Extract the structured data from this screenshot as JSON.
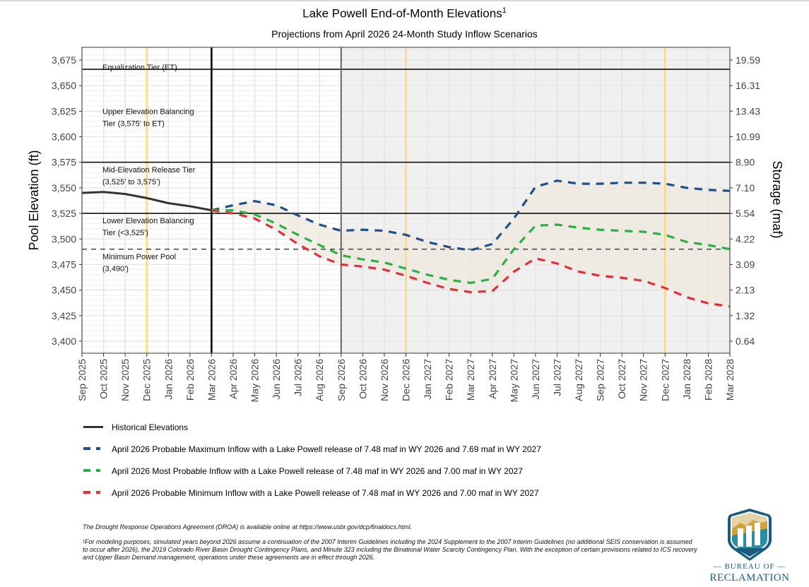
{
  "chart_data": {
    "type": "line",
    "title": "Lake Powell End-of-Month Elevations",
    "title_superscript": "1",
    "subtitle": "Projections from April 2026 24-Month Study Inflow Scenarios",
    "ylabel": "Pool Elevation (ft)",
    "ylabel_right": "Storage (maf)",
    "xlabel": "",
    "ylim": [
      3388,
      3688
    ],
    "grid": true,
    "legend_position": "bottom",
    "x": [
      "Sep 2025",
      "Oct 2025",
      "Nov 2025",
      "Dec 2025",
      "Jan 2026",
      "Feb 2026",
      "Mar 2026",
      "Apr 2026",
      "May 2026",
      "Jun 2026",
      "Jul 2026",
      "Aug 2026",
      "Sep 2026",
      "Oct 2026",
      "Nov 2026",
      "Dec 2026",
      "Jan 2027",
      "Feb 2027",
      "Mar 2027",
      "Apr 2027",
      "May 2027",
      "Jun 2027",
      "Jul 2027",
      "Aug 2027",
      "Sep 2027",
      "Oct 2027",
      "Nov 2027",
      "Dec 2027",
      "Jan 2028",
      "Feb 2028",
      "Mar 2028"
    ],
    "y_ticks": [
      "3,400",
      "3,425",
      "3,450",
      "3,475",
      "3,500",
      "3,525",
      "3,550",
      "3,575",
      "3,600",
      "3,625",
      "3,650",
      "3,675"
    ],
    "y_tick_values": [
      3400,
      3425,
      3450,
      3475,
      3500,
      3525,
      3550,
      3575,
      3600,
      3625,
      3650,
      3675
    ],
    "y_right_ticks": [
      "0.64",
      "1.32",
      "2.13",
      "3.09",
      "4.22",
      "5.54",
      "7.10",
      "8.90",
      "10.99",
      "13.43",
      "16.31",
      "19.59"
    ],
    "series": [
      {
        "name": "Historical Elevations",
        "color": "#333333",
        "style": "solid",
        "start_index": 0,
        "values": [
          3545,
          3546,
          3544,
          3540,
          3535,
          3532,
          3528
        ]
      },
      {
        "name": "April 2026 Probable Maximum Inflow with a Lake Powell release of 7.48 maf in WY 2026 and 7.69 maf in WY 2027",
        "color": "#1f4e8c",
        "style": "dashed",
        "start_index": 6,
        "values": [
          3528,
          3533,
          3537,
          3533,
          3523,
          3514,
          3508,
          3509,
          3508,
          3504,
          3497,
          3492,
          3489,
          3495,
          3520,
          3551,
          3557,
          3554,
          3554,
          3555,
          3555,
          3554,
          3550,
          3548,
          3547
        ]
      },
      {
        "name": "April 2026 Most Probable Inflow with a Lake Powell release of 7.48 maf in WY 2026 and 7.00 maf in WY 2027",
        "color": "#2ab043",
        "style": "dashed",
        "start_index": 6,
        "values": [
          3528,
          3528,
          3524,
          3515,
          3504,
          3494,
          3484,
          3480,
          3477,
          3471,
          3465,
          3460,
          3457,
          3461,
          3490,
          3513,
          3514,
          3511,
          3509,
          3508,
          3507,
          3504,
          3497,
          3494,
          3490
        ]
      },
      {
        "name": "April 2026 Probable Minimum Inflow with a Lake Powell release of 7.48 maf in WY 2026 and 7.00 maf in WY 2027",
        "color": "#e0303a",
        "style": "dashed",
        "start_index": 6,
        "values": [
          3528,
          3525,
          3520,
          3509,
          3495,
          3483,
          3475,
          3473,
          3470,
          3464,
          3457,
          3451,
          3448,
          3449,
          3468,
          3481,
          3476,
          3468,
          3464,
          3462,
          3459,
          3452,
          3443,
          3437,
          3434
        ]
      }
    ],
    "reference_lines": [
      {
        "name": "Equalization Tier",
        "value": 3666,
        "style": "solid"
      },
      {
        "name": "Mid-Elevation Release Tier top",
        "value": 3575,
        "style": "solid"
      },
      {
        "name": "Lower Elevation Balancing top",
        "value": 3525,
        "style": "solid"
      },
      {
        "name": "Minimum Power Pool",
        "value": 3490,
        "style": "dashed"
      }
    ],
    "vertical_markers": [
      {
        "x": "Mar 2026",
        "style": "black-solid"
      },
      {
        "x": "Sep 2026",
        "style": "gray-solid"
      },
      {
        "x": "Dec 2025",
        "style": "yellow"
      },
      {
        "x": "Dec 2026",
        "style": "yellow"
      },
      {
        "x": "Dec 2027",
        "style": "yellow"
      }
    ],
    "shaded_region_start": "Sep 2026",
    "annotations": [
      {
        "lines": [
          "Equalization Tier (ET)"
        ],
        "y": 3668
      },
      {
        "lines": [
          "Upper Elevation Balancing",
          "Tier (3,575' to ET)"
        ],
        "y": 3625
      },
      {
        "lines": [
          "Mid-Elevation Release Tier",
          "",
          "(3,525' to 3,575')"
        ],
        "y": 3568
      },
      {
        "lines": [
          "Lower Elevation Balancing",
          "Tier (<3,525')"
        ],
        "y": 3518
      },
      {
        "lines": [
          "Minimum Power Pool",
          "(3,490')"
        ],
        "y": 3483
      }
    ],
    "colors": {
      "band": "#efe9df",
      "future_bg": "#f0f0f0",
      "yellow": "#fdd882",
      "grid": "#e6e6e6"
    }
  },
  "footnotes": {
    "droa": "The Drought Response Operations Agreement (DROA) is available online at https://www.usbr.gov/dcp/finaldocs.html.",
    "note1": "¹For modeling purposes, simulated years beyond 2026 assume a continuation of the 2007 Interim Guidelines including the 2024 Supplement to the 2007 Interim Guidelines (no additional SEIS conservation is assumed to occur after 2026), the 2019 Colorado River Basin Drought Contingency Plans, and Minute 323 including the Binational Water Scarcity Contingency Plan. With the exception of certain provisions related to ICS recovery and Upper Basin Demand management, operations under these agreements are in effect through 2026."
  },
  "logo": {
    "line1": "— BUREAU OF —",
    "line2": "RECLAMATION"
  }
}
